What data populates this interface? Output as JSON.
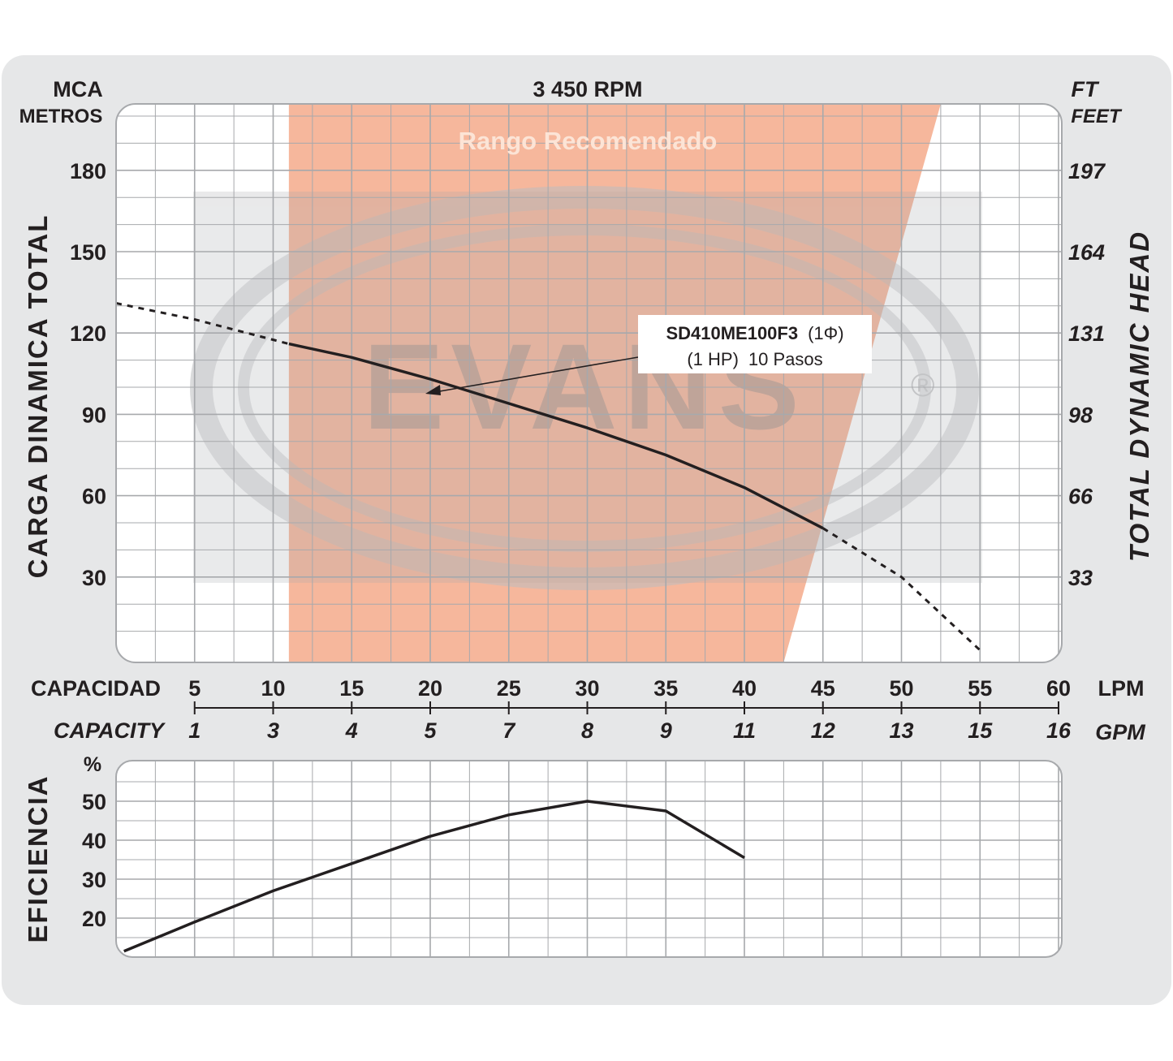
{
  "header": {
    "left_unit_1": "MCA",
    "left_unit_2": "METROS",
    "speed": "3 450 RPM",
    "right_unit_1": "FT",
    "right_unit_2": "FEET"
  },
  "axes": {
    "left_title": "CARGA  DINAMICA  TOTAL",
    "right_title": "TOTAL  DYNAMIC  HEAD",
    "capacity_label": "CAPACIDAD",
    "capacity_label_en": "CAPACITY",
    "lpm_unit": "LPM",
    "gpm_unit": "GPM",
    "eff_title": "EFICIENCIA",
    "eff_unit": "%"
  },
  "recommended_range_label": "Rango Recomendado",
  "watermark": {
    "text": "EVANS",
    "mark": "®"
  },
  "model_box": {
    "model": "SD410ME100F3",
    "phase": "(1Φ)",
    "power": "(1 HP)",
    "stages": "10 Pasos"
  },
  "colors": {
    "range_fill": "#f4a583",
    "curve": "#231f20",
    "grid": "#a7a9ac",
    "frame_bg": "#e6e7e8",
    "watermark": "#a7a9ac"
  },
  "chart_data": [
    {
      "type": "line",
      "title": "3 450 RPM",
      "xlabel": "CAPACIDAD (LPM)",
      "ylabel": "CARGA DINAMICA TOTAL (MCA METROS)",
      "y2label": "TOTAL DYNAMIC HEAD (FT FEET)",
      "xlim": [
        0,
        60
      ],
      "ylim": [
        0,
        200
      ],
      "x_ticks": [
        5,
        10,
        15,
        20,
        25,
        30,
        35,
        40,
        45,
        50,
        55,
        60
      ],
      "gpm_ticks": [
        "1",
        "3",
        "4",
        "5",
        "7",
        "8",
        "9",
        "11",
        "12",
        "13",
        "15",
        "16"
      ],
      "y_ticks": [
        30,
        60,
        90,
        120,
        150,
        180
      ],
      "y2_ticks": [
        "33",
        "66",
        "98",
        "131",
        "164",
        "197"
      ],
      "recommended_range": {
        "bottom": [
          11,
          42.5
        ],
        "top": [
          11,
          52.5
        ]
      },
      "series": [
        {
          "name": "SD410ME100F3",
          "x": [
            11,
            15,
            20,
            25,
            30,
            35,
            40,
            45
          ],
          "y": [
            116,
            111,
            103,
            94,
            85,
            75,
            63,
            48
          ],
          "dashed_before": {
            "x": [
              0,
              5,
              11
            ],
            "y": [
              131,
              125,
              116
            ]
          },
          "dashed_after": {
            "x": [
              45,
              50,
              55
            ],
            "y": [
              48,
              30,
              3
            ]
          }
        }
      ],
      "grid": true
    },
    {
      "type": "line",
      "ylabel": "EFICIENCIA (%)",
      "xlim": [
        0,
        60
      ],
      "ylim": [
        10,
        55
      ],
      "y_ticks": [
        20,
        30,
        40,
        50
      ],
      "series": [
        {
          "name": "",
          "x": [
            0.5,
            5,
            10,
            15,
            20,
            25,
            30,
            35,
            40
          ],
          "y": [
            11.5,
            19,
            27,
            34,
            41,
            46.5,
            50,
            47.5,
            35.5
          ]
        }
      ],
      "grid": true
    }
  ]
}
